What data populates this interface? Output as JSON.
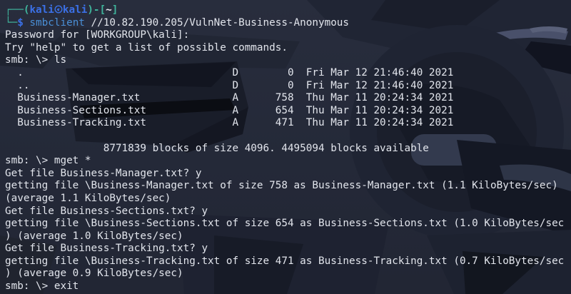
{
  "colors": {
    "terminal_background": "#242938",
    "foreground": "#e2e5ec",
    "prompt_frame_green": "#3fb39b",
    "prompt_user_blue": "#3b70e6",
    "command_blue": "#4a8fd6"
  },
  "icons": {
    "kali_symbol": "circled-kali-dragon"
  },
  "prompt": {
    "frame_top": "┌──(",
    "user": "kali",
    "host": "kali",
    "frame_mid": ")-[",
    "path": "~",
    "frame_end": "]",
    "frame_bottom": "└─",
    "prompt_symbol": "$",
    "command": " smbclient",
    "command_args": " //10.82.190.205/VulnNet-Business-Anonymous"
  },
  "lines": [
    "Password for [WORKGROUP\\kali]:",
    "Try \"help\" to get a list of possible commands.",
    "smb: \\> ls",
    "  .                                  D        0  Fri Mar 12 21:46:40 2021",
    "  ..                                 D        0  Fri Mar 12 21:46:40 2021",
    "  Business-Manager.txt               A      758  Thu Mar 11 20:24:34 2021",
    "  Business-Sections.txt              A      654  Thu Mar 11 20:24:34 2021",
    "  Business-Tracking.txt              A      471  Thu Mar 11 20:24:34 2021",
    "",
    "                8771839 blocks of size 4096. 4495094 blocks available",
    "smb: \\> mget *",
    "Get file Business-Manager.txt? y",
    "getting file \\Business-Manager.txt of size 758 as Business-Manager.txt (1.1 KiloBytes/sec)",
    "(average 1.1 KiloBytes/sec)",
    "Get file Business-Sections.txt? y",
    "getting file \\Business-Sections.txt of size 654 as Business-Sections.txt (1.0 KiloBytes/sec",
    ") (average 1.0 KiloBytes/sec)",
    "Get file Business-Tracking.txt? y",
    "getting file \\Business-Tracking.txt of size 471 as Business-Tracking.txt (0.7 KiloBytes/sec",
    ") (average 0.9 KiloBytes/sec)",
    "smb: \\> exit"
  ]
}
